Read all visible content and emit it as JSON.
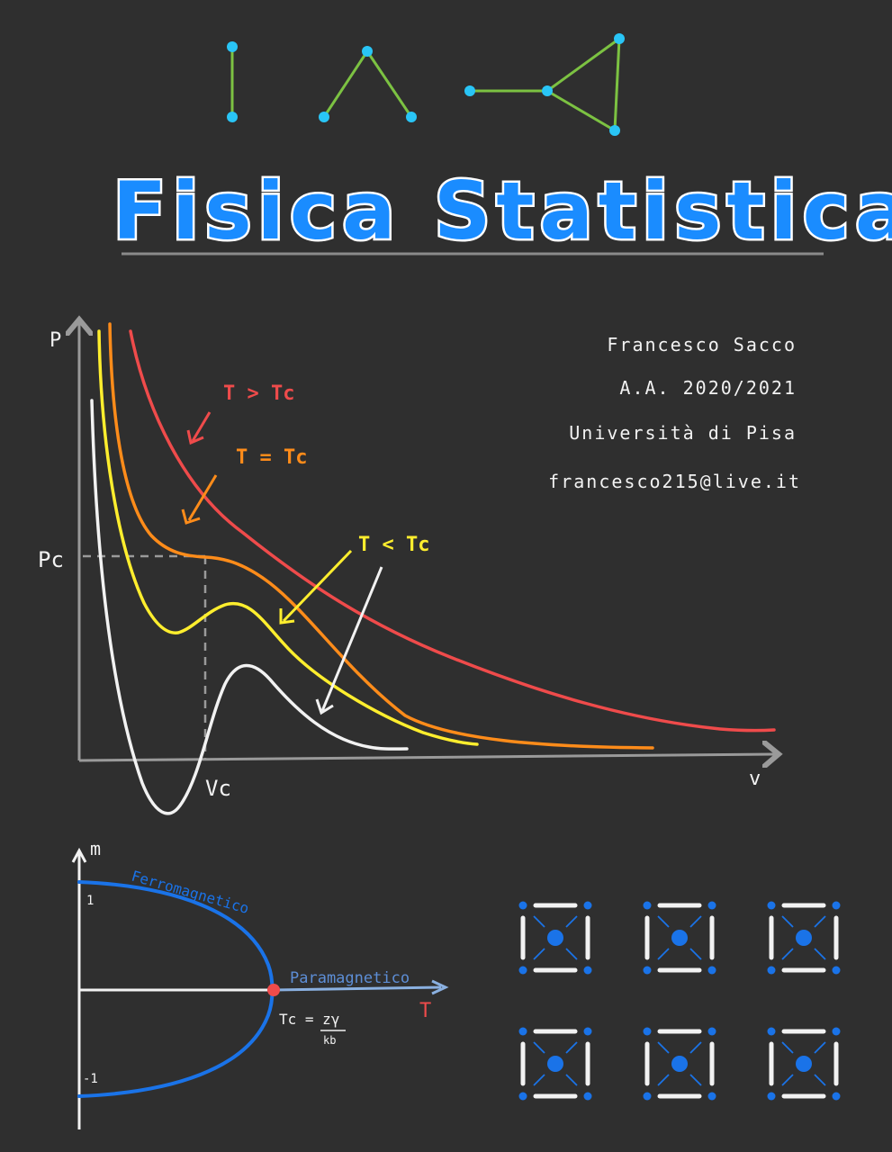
{
  "title": "Fisica Statistica",
  "author": {
    "name": "Francesco Sacco",
    "year": "A.A. 2020/2021",
    "university": "Università di Pisa",
    "email": "francesco215@live.it"
  },
  "pv_diagram": {
    "p_axis_label": "P",
    "v_axis_label": "v",
    "pc_label": "Pc",
    "vc_label": "Vc",
    "label_above": "T > Tc",
    "label_equal": "T = Tc",
    "label_below": "T < Tc"
  },
  "magnet_diagram": {
    "m_axis_label": "m",
    "t_axis_label": "T",
    "tick_top": "1",
    "tick_bottom": "-1",
    "ferro_label": "Ferromagnetico",
    "para_label": "Paramagnetico",
    "tc_formula": "Tc = zγ",
    "tc_denominator": "kb"
  },
  "colors": {
    "background": "#2f2f2f",
    "title_fill": "#1a8cff",
    "red": "#ef4b4b",
    "orange": "#ff8c1a",
    "yellow": "#ffee2e",
    "white": "#f2f2f2",
    "blue": "#1a73e8",
    "graph_node": "#29c5f6",
    "graph_edge": "#7cc242"
  }
}
